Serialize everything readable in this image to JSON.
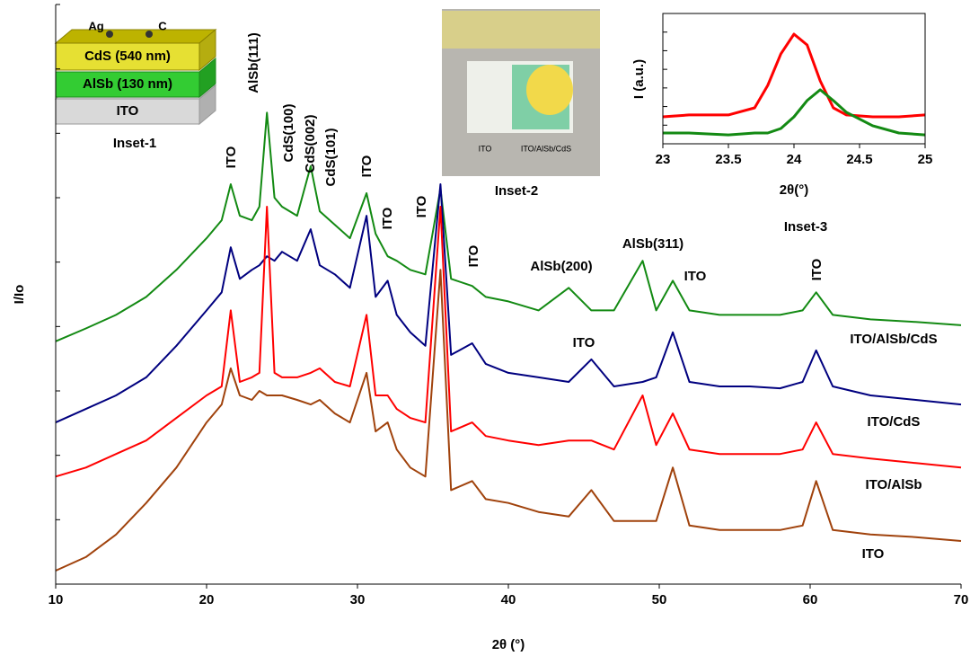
{
  "chart_data": [
    {
      "type": "line",
      "xlabel": "2θ (°)",
      "ylabel": "I/Io",
      "xlim": [
        10,
        70
      ],
      "xticks": [
        10,
        20,
        30,
        40,
        50,
        60,
        70
      ],
      "ylim": [
        0,
        9
      ],
      "yticks": [
        0,
        1,
        2,
        3,
        4,
        5,
        6,
        7,
        8,
        9
      ],
      "x": [
        10,
        12,
        14,
        16,
        18,
        20,
        21,
        21.6,
        22.2,
        23,
        23.5,
        24.0,
        24.5,
        25,
        26,
        26.9,
        27.5,
        28.5,
        29.5,
        30.6,
        31.2,
        32.0,
        32.6,
        33.5,
        34.5,
        35.5,
        36.2,
        37.6,
        38.5,
        40,
        42,
        44.0,
        45.5,
        47,
        48.9,
        49.8,
        50.9,
        52,
        54,
        56,
        58,
        59.5,
        60.4,
        61.5,
        64,
        67,
        70
      ],
      "series": [
        {
          "name": "ITO/AlSb/CdS",
          "color": "#138a13",
          "values": [
            3.77,
            3.97,
            4.18,
            4.46,
            4.88,
            5.37,
            5.65,
            6.21,
            5.72,
            5.65,
            5.86,
            7.32,
            6.0,
            5.86,
            5.72,
            6.49,
            5.79,
            5.58,
            5.37,
            6.07,
            5.44,
            5.09,
            5.02,
            4.88,
            4.81,
            6.14,
            4.74,
            4.63,
            4.46,
            4.39,
            4.25,
            4.6,
            4.25,
            4.25,
            5.02,
            4.25,
            4.71,
            4.25,
            4.18,
            4.18,
            4.18,
            4.25,
            4.53,
            4.18,
            4.11,
            4.07,
            4.02
          ]
        },
        {
          "name": "ITO/CdS",
          "color": "#00007f",
          "values": [
            2.51,
            2.72,
            2.93,
            3.21,
            3.7,
            4.25,
            4.53,
            5.23,
            4.74,
            4.88,
            4.95,
            5.09,
            5.02,
            5.16,
            5.02,
            5.51,
            4.95,
            4.81,
            4.6,
            5.72,
            4.46,
            4.71,
            4.18,
            3.91,
            3.7,
            6.21,
            3.56,
            3.74,
            3.42,
            3.28,
            3.21,
            3.14,
            3.49,
            3.07,
            3.14,
            3.21,
            3.91,
            3.14,
            3.07,
            3.07,
            3.04,
            3.14,
            3.63,
            3.07,
            2.93,
            2.86,
            2.79
          ]
        },
        {
          "name": "ITO/AlSb",
          "color": "#ff0000",
          "values": [
            1.67,
            1.81,
            2.02,
            2.23,
            2.58,
            2.93,
            3.07,
            4.25,
            3.14,
            3.21,
            3.28,
            5.86,
            3.28,
            3.21,
            3.21,
            3.28,
            3.35,
            3.14,
            3.07,
            4.18,
            2.93,
            2.93,
            2.72,
            2.58,
            2.51,
            5.86,
            2.37,
            2.51,
            2.3,
            2.23,
            2.16,
            2.23,
            2.23,
            2.09,
            2.93,
            2.16,
            2.65,
            2.09,
            2.02,
            2.02,
            2.02,
            2.09,
            2.51,
            2.02,
            1.95,
            1.88,
            1.81
          ]
        },
        {
          "name": "ITO",
          "color": "#a0420c",
          "values": [
            0.21,
            0.42,
            0.77,
            1.26,
            1.81,
            2.51,
            2.79,
            3.35,
            2.93,
            2.86,
            3.0,
            2.93,
            2.93,
            2.93,
            2.86,
            2.79,
            2.86,
            2.65,
            2.51,
            3.28,
            2.37,
            2.51,
            2.09,
            1.81,
            1.67,
            4.88,
            1.46,
            1.6,
            1.32,
            1.26,
            1.12,
            1.05,
            1.46,
            0.98,
            0.98,
            0.98,
            1.81,
            0.91,
            0.84,
            0.84,
            0.84,
            0.91,
            1.6,
            0.84,
            0.77,
            0.73,
            0.67
          ]
        }
      ],
      "annotations": [
        "ITO",
        "AlSb(111)",
        "CdS(100)",
        "CdS(002)",
        "CdS(101)",
        "ITO",
        "ITO",
        "ITO",
        "ITO",
        "AlSb(200)",
        "AlSb(311)",
        "ITO",
        "ITO",
        "ITO"
      ]
    },
    {
      "type": "line",
      "title": "Inset-3",
      "xlabel": "2θ(°)",
      "ylabel": "I (a.u.)",
      "xlim": [
        23,
        25
      ],
      "xticks": [
        23,
        23.5,
        24,
        24.5,
        25
      ],
      "ylim": [
        0,
        7
      ],
      "yticks": [
        0,
        1,
        2,
        3,
        4,
        5,
        6,
        7
      ],
      "x": [
        23,
        23.2,
        23.5,
        23.7,
        23.8,
        23.9,
        24,
        24.1,
        24.2,
        24.3,
        24.4,
        24.6,
        24.8,
        25
      ],
      "series": [
        {
          "color": "#ff0000",
          "values": [
            1.45,
            1.55,
            1.55,
            1.93,
            3.14,
            4.83,
            5.89,
            5.31,
            3.38,
            1.93,
            1.55,
            1.45,
            1.45,
            1.55
          ]
        },
        {
          "color": "#138a13",
          "values": [
            0.58,
            0.58,
            0.48,
            0.58,
            0.58,
            0.82,
            1.45,
            2.32,
            2.9,
            2.32,
            1.69,
            0.97,
            0.58,
            0.48
          ]
        }
      ]
    }
  ],
  "inset1": {
    "title": "Inset-1",
    "contacts": [
      "Ag",
      "C"
    ],
    "layers": [
      "CdS (540 nm)",
      "AlSb (130 nm)",
      "ITO"
    ]
  },
  "inset2": {
    "title": "Inset-2",
    "labels": [
      "ITO",
      "ITO/AlSb/CdS"
    ]
  }
}
